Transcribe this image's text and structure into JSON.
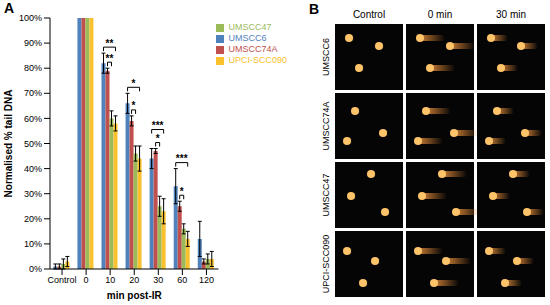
{
  "chart_data": {
    "type": "bar",
    "x_label": "min post-IR",
    "y_label": "Normalised % tail DNA",
    "categories": [
      "Control",
      "0",
      "10",
      "20",
      "30",
      "60",
      "120"
    ],
    "series": [
      {
        "name": "UMSCC6",
        "color": "#4f81bd",
        "values": [
          1,
          100,
          82,
          66,
          44,
          33,
          12
        ],
        "errors": [
          1,
          0,
          4,
          4,
          4,
          7,
          7
        ]
      },
      {
        "name": "UMSCC74A",
        "color": "#c0504d",
        "values": [
          1,
          100,
          79,
          59,
          47,
          25,
          3
        ],
        "errors": [
          1,
          0,
          1,
          2,
          1,
          2,
          1
        ]
      },
      {
        "name": "UMSCC47",
        "color": "#9bbb59",
        "values": [
          2,
          100,
          60,
          46,
          25,
          16,
          4
        ],
        "errors": [
          2,
          0,
          3,
          3,
          4,
          2,
          2
        ]
      },
      {
        "name": "UPCI-SCC090",
        "color": "#f9c12e",
        "values": [
          3,
          100,
          58,
          44,
          23,
          12,
          4
        ],
        "errors": [
          2,
          0,
          3,
          5,
          5,
          3,
          3
        ]
      }
    ],
    "ylim": [
      0,
      100
    ],
    "yticks": [
      {
        "value": 0,
        "label": "0%"
      },
      {
        "value": 10,
        "label": "10%"
      },
      {
        "value": 20,
        "label": "20%"
      },
      {
        "value": 30,
        "label": "30%"
      },
      {
        "value": 40,
        "label": "40%"
      },
      {
        "value": 50,
        "label": "50%"
      },
      {
        "value": 60,
        "label": "60%"
      },
      {
        "value": 70,
        "label": "70%"
      },
      {
        "value": 80,
        "label": "80%"
      },
      {
        "value": 90,
        "label": "90%"
      },
      {
        "value": 100,
        "label": "100%"
      }
    ],
    "grid": false,
    "legend": "upper right",
    "annotations": [
      {
        "category": "10",
        "from": "UMSCC6",
        "to": "UPCI-SCC090",
        "text": "**"
      },
      {
        "category": "10",
        "from": "UMSCC74A",
        "to": "UMSCC47",
        "text": "**"
      },
      {
        "category": "20",
        "from": "UMSCC6",
        "to": "UPCI-SCC090",
        "text": "*"
      },
      {
        "category": "20",
        "from": "UMSCC74A",
        "to": "UMSCC47",
        "text": "*"
      },
      {
        "category": "30",
        "from": "UMSCC6",
        "to": "UPCI-SCC090",
        "text": "***"
      },
      {
        "category": "30",
        "from": "UMSCC74A",
        "to": "UMSCC47",
        "text": "*"
      },
      {
        "category": "60",
        "from": "UMSCC6",
        "to": "UPCI-SCC090",
        "text": "***"
      },
      {
        "category": "60",
        "from": "UMSCC74A",
        "to": "UMSCC47",
        "text": "*"
      }
    ]
  },
  "panel_labels": [
    "A",
    "B"
  ],
  "comet_images": {
    "columns": [
      "Control",
      "0 min",
      "30 min"
    ],
    "rows": [
      "UMSCC6",
      "UMSCC74A",
      "UMSCC47",
      "UPCI-SCC090"
    ]
  }
}
